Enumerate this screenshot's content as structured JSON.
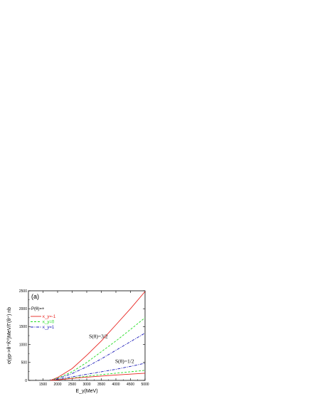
{
  "chart_data": {
    "type": "line",
    "panel_label": "(a)",
    "xlabel": "E_γ(MeV)",
    "ylabel": "σ(γp->θ⁺K̄⁰)MeV/Γ(θ⁺) nb",
    "xlim": [
      1000,
      5000
    ],
    "ylim": [
      0,
      2500
    ],
    "x_ticks": [
      1500,
      2000,
      2500,
      3000,
      3500,
      4000,
      4500,
      5000
    ],
    "y_ticks": [
      0,
      500,
      1000,
      1500,
      2000,
      2500
    ],
    "x_tick_labels": [
      "1500",
      "2000",
      "2500",
      "3000",
      "3500",
      "4000",
      "4500",
      "5000"
    ],
    "y_tick_labels": [
      "0",
      "500",
      "1000",
      "1500",
      "2000",
      "2500"
    ],
    "legend": {
      "title": "P(θ)=+",
      "placement": "top-left",
      "entries": [
        {
          "label": "κ_y=-1",
          "color": "#e8231f",
          "style": "solid"
        },
        {
          "label": "κ_y=0",
          "color": "#22dd22",
          "style": "dashed"
        },
        {
          "label": "κ_y=1",
          "color": "#1a1ab8",
          "style": "dashdot"
        }
      ]
    },
    "annotations": [
      {
        "text": "S(θ)=3/2",
        "at": [
          3400,
          1180
        ]
      },
      {
        "text": "S(θ)=1/2",
        "at": [
          4300,
          490
        ]
      }
    ],
    "series": [
      {
        "group": "S(θ)=3/2",
        "color": "#e8231f",
        "style": "solid",
        "x": [
          1750,
          2000,
          2500,
          3000,
          3500,
          4000,
          4500,
          5000
        ],
        "y": [
          0,
          80,
          330,
          700,
          1100,
          1550,
          2000,
          2480
        ]
      },
      {
        "group": "S(θ)=3/2",
        "color": "#22dd22",
        "style": "dashed",
        "x": [
          1750,
          2000,
          2500,
          3000,
          3500,
          4000,
          4500,
          5000
        ],
        "y": [
          0,
          60,
          240,
          500,
          800,
          1100,
          1420,
          1750
        ]
      },
      {
        "group": "S(θ)=3/2",
        "color": "#1a1ab8",
        "style": "dashdot",
        "x": [
          1750,
          2000,
          2500,
          3000,
          3500,
          4000,
          4500,
          5000
        ],
        "y": [
          0,
          45,
          190,
          380,
          600,
          840,
          1080,
          1320
        ]
      },
      {
        "group": "S(θ)=1/2",
        "color": "#1a1ab8",
        "style": "dashdot",
        "x": [
          1750,
          2000,
          2500,
          3000,
          3500,
          4000,
          4500,
          5000
        ],
        "y": [
          0,
          30,
          100,
          170,
          240,
          310,
          390,
          480
        ]
      },
      {
        "group": "S(θ)=1/2",
        "color": "#22dd22",
        "style": "dashed",
        "x": [
          1750,
          2000,
          2500,
          3000,
          3500,
          4000,
          4500,
          5000
        ],
        "y": [
          0,
          20,
          65,
          115,
          160,
          200,
          240,
          280
        ]
      },
      {
        "group": "S(θ)=1/2",
        "color": "#e8231f",
        "style": "solid",
        "x": [
          1750,
          2000,
          2500,
          3000,
          3500,
          4000,
          4500,
          5000
        ],
        "y": [
          0,
          15,
          55,
          90,
          120,
          150,
          175,
          200
        ]
      }
    ]
  }
}
